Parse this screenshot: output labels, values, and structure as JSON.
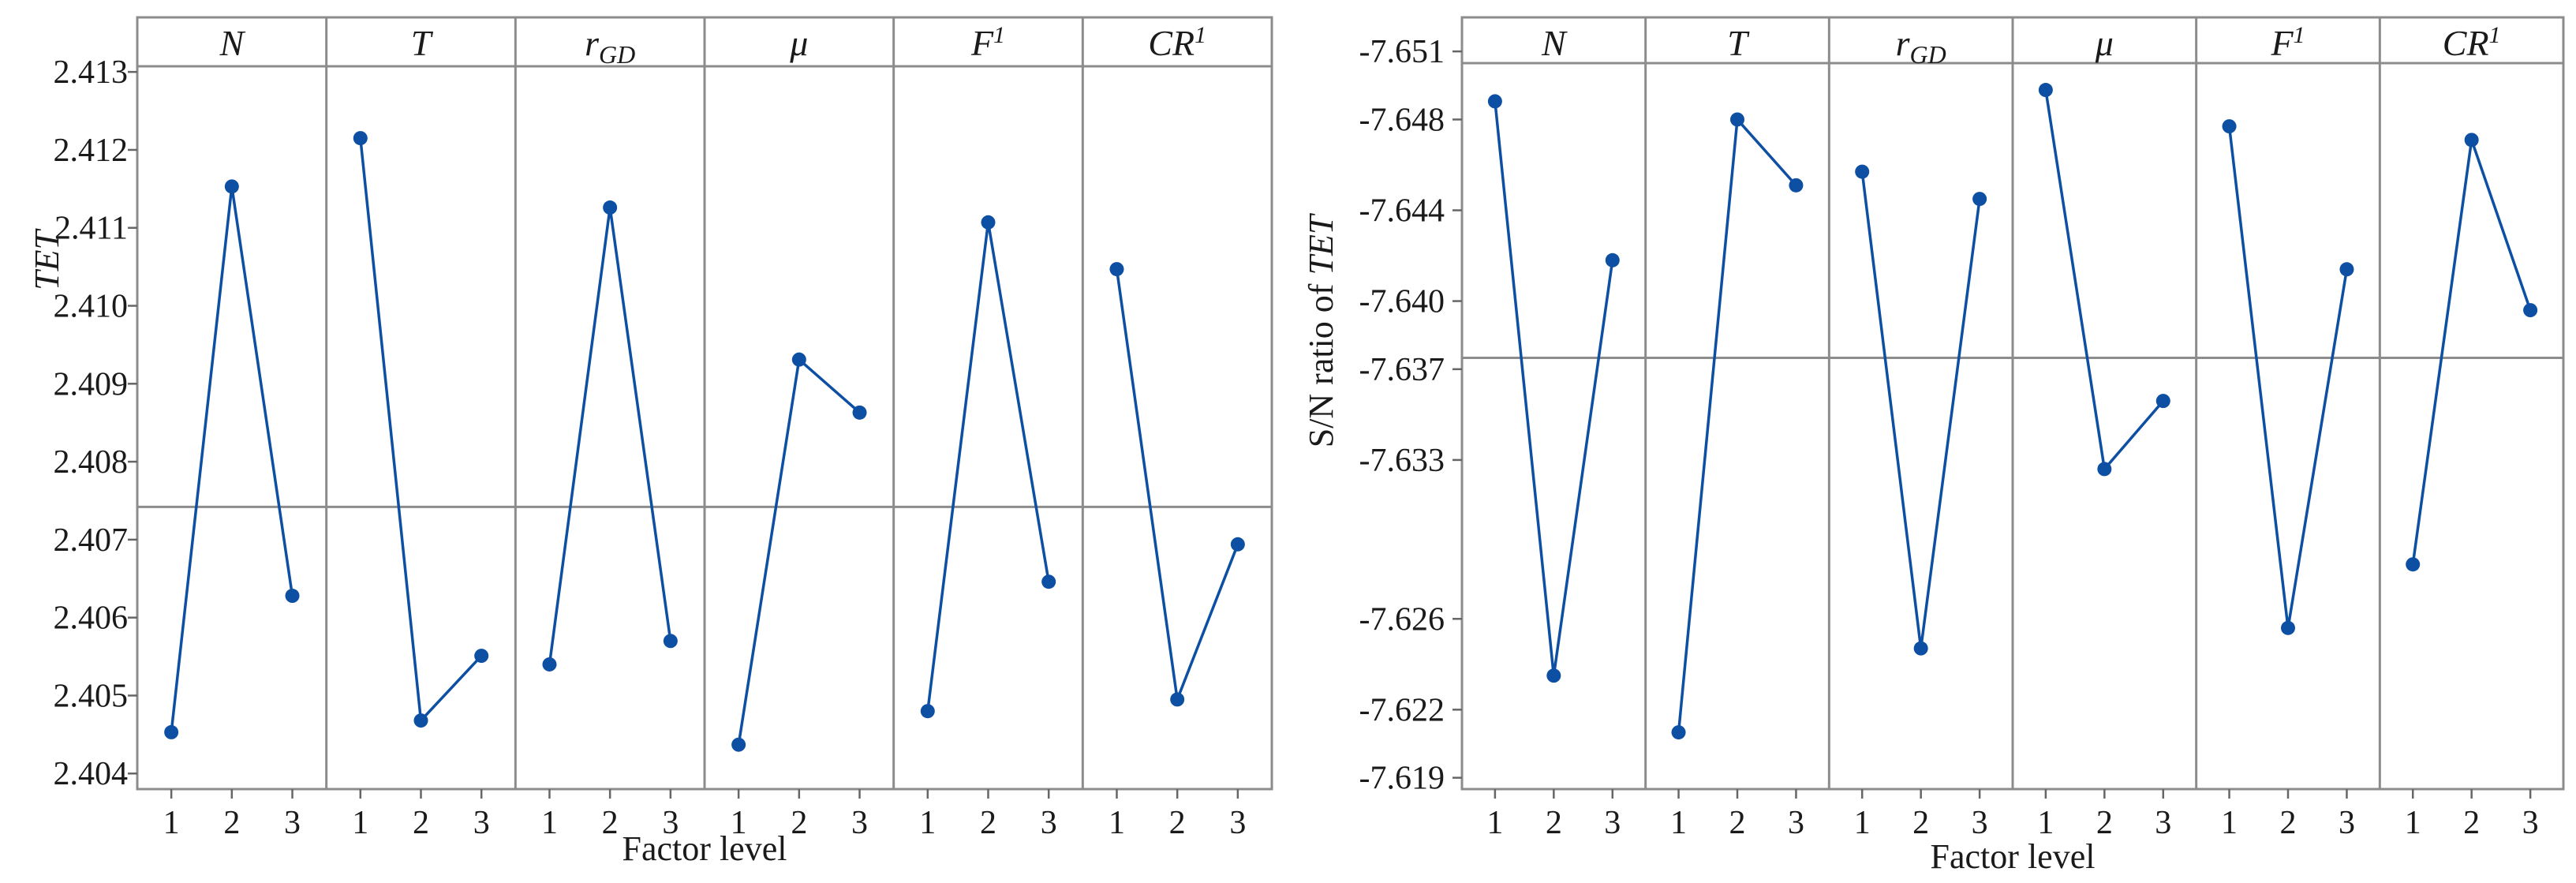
{
  "chart_data": [
    {
      "type": "line",
      "panels": [
        {
          "label": "N",
          "sub": "",
          "sup": "",
          "values": [
            2.40453,
            2.41153,
            2.40628
          ]
        },
        {
          "label": "T",
          "sub": "",
          "sup": "",
          "values": [
            2.41215,
            2.40468,
            2.40551
          ]
        },
        {
          "label": "r",
          "sub": "GD",
          "sup": "",
          "values": [
            2.4054,
            2.41126,
            2.4057
          ]
        },
        {
          "label": "μ",
          "sub": "",
          "sup": "",
          "values": [
            2.40437,
            2.40931,
            2.40863
          ]
        },
        {
          "label": "F",
          "sub": "",
          "sup": "1",
          "values": [
            2.4048,
            2.41107,
            2.40646
          ]
        },
        {
          "label": "CR",
          "sub": "",
          "sup": "1",
          "values": [
            2.41047,
            2.40495,
            2.40694
          ]
        }
      ],
      "categories": [
        "1",
        "2",
        "3"
      ],
      "xlabel": "Factor level",
      "ylabel": "TET",
      "yticks": [
        "2.404",
        "2.405",
        "2.406",
        "2.407",
        "2.408",
        "2.409",
        "2.410",
        "2.411",
        "2.412",
        "2.413"
      ],
      "ylim": [
        2.4038,
        2.4137
      ],
      "top_line": 2.41295,
      "mean_line": 2.40742,
      "reversed": false,
      "color": "#0d4fa3"
    },
    {
      "type": "line",
      "panels": [
        {
          "label": "N",
          "sub": "",
          "sup": "",
          "values": [
            -7.6488,
            -7.6235,
            -7.6418
          ]
        },
        {
          "label": "T",
          "sub": "",
          "sup": "",
          "values": [
            -7.621,
            -7.648,
            -7.6451
          ]
        },
        {
          "label": "r",
          "sub": "GD",
          "sup": "",
          "values": [
            -7.6457,
            -7.6247,
            -7.6445
          ]
        },
        {
          "label": "μ",
          "sub": "",
          "sup": "",
          "values": [
            -7.6493,
            -7.6326,
            -7.6356
          ]
        },
        {
          "label": "F",
          "sub": "",
          "sup": "1",
          "values": [
            -7.6477,
            -7.6256,
            -7.6414
          ]
        },
        {
          "label": "CR",
          "sub": "",
          "sup": "1",
          "values": [
            -7.6284,
            -7.6471,
            -7.6396
          ]
        }
      ],
      "categories": [
        "1",
        "2",
        "3"
      ],
      "xlabel": "Factor level",
      "ylabel": "S/N ratio of TET",
      "ylabel_plain": "S/N ratio of ",
      "ylabel_italic": "TET",
      "yticks": [
        "-7.651",
        "-7.648",
        "-7.644",
        "-7.640",
        "-7.637",
        "-7.633",
        "-7.626",
        "-7.622",
        "-7.619"
      ],
      "ylim": [
        -7.6525,
        -7.6185
      ],
      "top_line": -7.6525,
      "mean_line": -7.6375,
      "reversed": true,
      "color": "#0d4fa3"
    }
  ]
}
